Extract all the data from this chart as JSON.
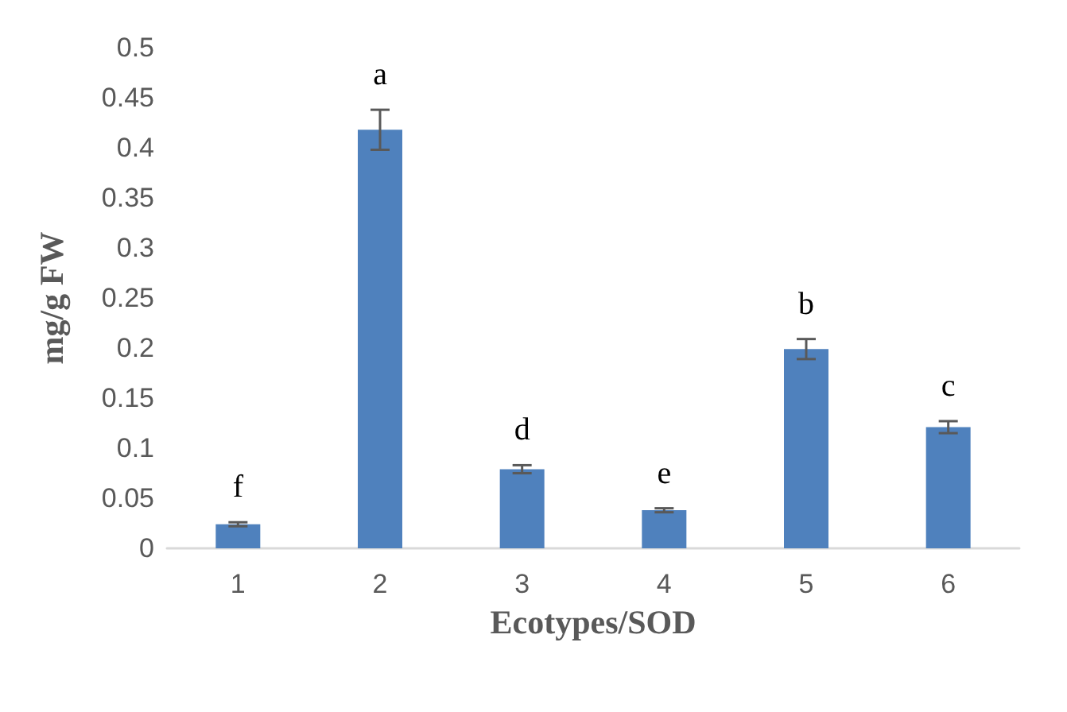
{
  "chart_data": {
    "type": "bar",
    "categories": [
      "1",
      "2",
      "3",
      "4",
      "5",
      "6"
    ],
    "values": [
      0.024,
      0.418,
      0.079,
      0.038,
      0.199,
      0.121
    ],
    "errors": [
      0.002,
      0.02,
      0.004,
      0.002,
      0.01,
      0.006
    ],
    "color": "#4f81bd",
    "xlabel": "Ecotypes/SOD",
    "ylabel": "mg/g FW",
    "ylim": [
      0,
      0.5
    ],
    "yticks": [
      0,
      0.05,
      0.1,
      0.15,
      0.2,
      0.25,
      0.3,
      0.35,
      0.4,
      0.45,
      0.5
    ],
    "annotations": [
      "f",
      "a",
      "d",
      "e",
      "b",
      "c"
    ]
  }
}
